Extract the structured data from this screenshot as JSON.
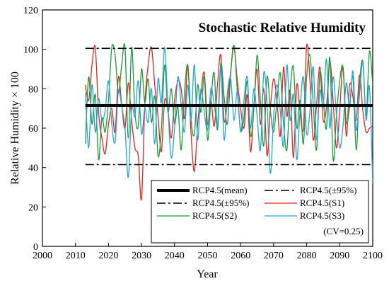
{
  "chart_data": {
    "type": "line",
    "title": "Stochastic Relative Humidity",
    "xlabel": "Year",
    "ylabel": "Relative  Humidity × 100",
    "xlim": [
      2000,
      2100
    ],
    "ylim": [
      0,
      120
    ],
    "xticks": [
      2000,
      2010,
      2020,
      2030,
      2040,
      2050,
      2060,
      2070,
      2080,
      2090,
      2100
    ],
    "yticks": [
      0,
      20,
      40,
      60,
      80,
      100,
      120
    ],
    "xtick_labels": [
      "2000",
      "2010",
      "2020",
      "2030",
      "2040",
      "2050",
      "2060",
      "2070",
      "2080",
      "2090",
      "2100"
    ],
    "ytick_labels": [
      "0",
      "20",
      "40",
      "60",
      "80",
      "100",
      "120"
    ],
    "grid": false,
    "legend_position": "bottom-right",
    "note": "(CV=0.25)",
    "mean": {
      "name": "RCP4.5(mean)",
      "value": 71.5,
      "x": [
        2013,
        2100
      ],
      "color": "#000000"
    },
    "bounds": [
      {
        "name": "RCP4.5(±95%)",
        "value": 100.5,
        "x": [
          2013,
          2100
        ],
        "color": "#000000"
      },
      {
        "name": "RCP4.5(±95%)",
        "value": 41.5,
        "x": [
          2013,
          2100
        ],
        "color": "#000000"
      }
    ],
    "x": [
      2013,
      2014,
      2015,
      2016,
      2017,
      2018,
      2019,
      2020,
      2021,
      2022,
      2023,
      2024,
      2025,
      2026,
      2027,
      2028,
      2029,
      2030,
      2031,
      2032,
      2033,
      2034,
      2035,
      2036,
      2037,
      2038,
      2039,
      2040,
      2041,
      2042,
      2043,
      2044,
      2045,
      2046,
      2047,
      2048,
      2049,
      2050,
      2051,
      2052,
      2053,
      2054,
      2055,
      2056,
      2057,
      2058,
      2059,
      2060,
      2061,
      2062,
      2063,
      2064,
      2065,
      2066,
      2067,
      2068,
      2069,
      2070,
      2071,
      2072,
      2073,
      2074,
      2075,
      2076,
      2077,
      2078,
      2079,
      2080,
      2081,
      2082,
      2083,
      2084,
      2085,
      2086,
      2087,
      2088,
      2089,
      2090,
      2091,
      2092,
      2093,
      2094,
      2095,
      2096,
      2097,
      2098,
      2099,
      2100
    ],
    "series": [
      {
        "name": "RCP4.5(S1)",
        "color": "#e8241e",
        "values": [
          82,
          74,
          92,
          101,
          68,
          55,
          47,
          62,
          70,
          58,
          86,
          72,
          60,
          83,
          64,
          50,
          46,
          24,
          72,
          92,
          101,
          82,
          66,
          48,
          74,
          69,
          55,
          74,
          84,
          80,
          65,
          92,
          57,
          38,
          62,
          78,
          88,
          62,
          74,
          61,
          82,
          97,
          64,
          73,
          89,
          101,
          84,
          70,
          60,
          77,
          48,
          70,
          90,
          62,
          80,
          46,
          70,
          85,
          74,
          56,
          91,
          66,
          79,
          45,
          82,
          68,
          60,
          102,
          84,
          54,
          72,
          91,
          64,
          71,
          94,
          74,
          50,
          69,
          91,
          56,
          82,
          76,
          64,
          87,
          69,
          58,
          60,
          61
        ]
      },
      {
        "name": "RCP4.5(S2)",
        "color": "#1f9a3a",
        "values": [
          52,
          86,
          62,
          77,
          44,
          65,
          58,
          74,
          101,
          97,
          78,
          92,
          101,
          55,
          101,
          68,
          61,
          90,
          73,
          85,
          63,
          76,
          46,
          59,
          92,
          68,
          80,
          62,
          71,
          49,
          78,
          92,
          64,
          57,
          82,
          68,
          86,
          54,
          74,
          88,
          59,
          93,
          76,
          62,
          88,
          102,
          79,
          59,
          65,
          84,
          56,
          70,
          97,
          74,
          51,
          86,
          69,
          58,
          74,
          88,
          62,
          49,
          79,
          91,
          60,
          74,
          52,
          86,
          97,
          72,
          49,
          88,
          75,
          60,
          96,
          44,
          66,
          84,
          91,
          63,
          71,
          86,
          49,
          82,
          94,
          66,
          99,
          82
        ]
      },
      {
        "name": "RCP4.5(S3)",
        "color": "#27a3dd",
        "values": [
          78,
          50,
          82,
          58,
          75,
          64,
          69,
          84,
          62,
          53,
          79,
          71,
          60,
          35,
          70,
          66,
          84,
          57,
          70,
          63,
          80,
          52,
          85,
          73,
          101,
          70,
          45,
          60,
          86,
          72,
          58,
          82,
          64,
          92,
          54,
          80,
          68,
          59,
          80,
          72,
          62,
          91,
          54,
          78,
          85,
          64,
          79,
          58,
          74,
          86,
          60,
          80,
          66,
          49,
          88,
          73,
          37,
          66,
          82,
          69,
          51,
          92,
          64,
          77,
          44,
          69,
          86,
          57,
          69,
          91,
          54,
          79,
          71,
          95,
          60,
          86,
          67,
          50,
          61,
          83,
          70,
          89,
          59,
          77,
          93,
          64,
          81,
          32
        ]
      }
    ],
    "legend": [
      {
        "label": "RCP4.5(mean)",
        "style": "mean",
        "color": "#000000"
      },
      {
        "label": "RCP4.5(±95%)",
        "style": "dashdot",
        "color": "#000000"
      },
      {
        "label": "RCP4.5(±95%)",
        "style": "dashdot",
        "color": "#000000"
      },
      {
        "label": "RCP4.5(S1)",
        "style": "line",
        "color": "#e8241e"
      },
      {
        "label": "RCP4.5(S2)",
        "style": "line",
        "color": "#1f9a3a"
      },
      {
        "label": "RCP4.5(S3)",
        "style": "line",
        "color": "#27a3dd"
      }
    ]
  }
}
